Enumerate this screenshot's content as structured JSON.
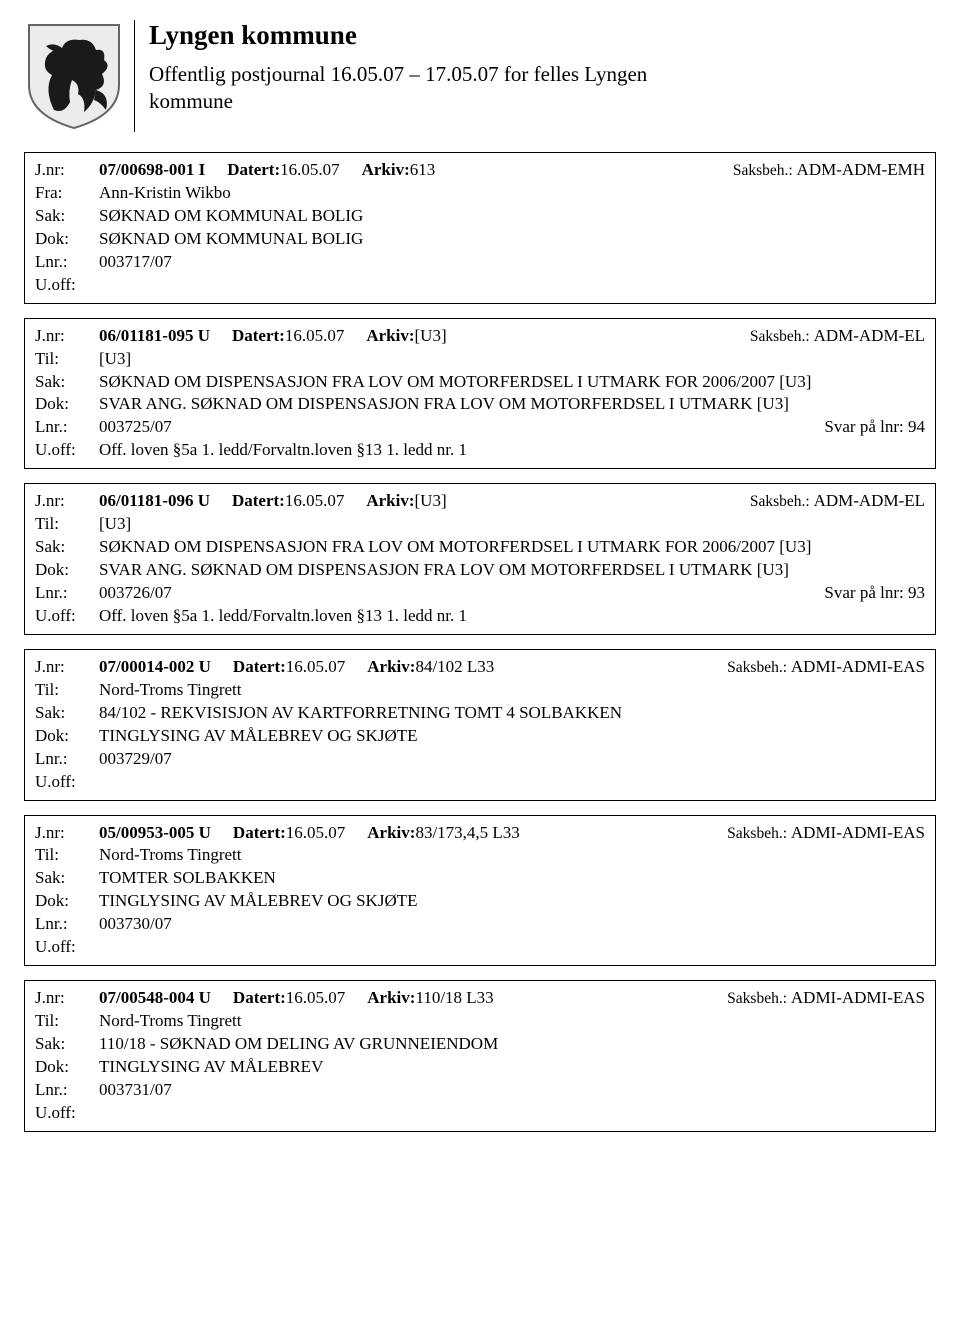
{
  "header": {
    "title": "Lyngen kommune",
    "subtitle": "Offentlig postjournal 16.05.07 – 17.05.07 for felles Lyngen kommune"
  },
  "labels": {
    "jnr": "J.nr:",
    "fra": "Fra:",
    "til": "Til:",
    "sak": "Sak:",
    "dok": "Dok:",
    "lnr": "Lnr.:",
    "uoff": "U.off:",
    "datert": "Datert:",
    "arkiv": "Arkiv:",
    "saksbeh": "Saksbeh.:"
  },
  "entries": [
    {
      "jnr": "07/00698-001 I",
      "datert": "16.05.07",
      "arkiv": "613",
      "saksbeh": "ADM-ADM-EMH",
      "party_label": "Fra:",
      "party": "Ann-Kristin Wikbo",
      "sak": "SØKNAD OM KOMMUNAL BOLIG",
      "dok": "SØKNAD OM KOMMUNAL BOLIG",
      "lnr": "003717/07",
      "lnr_note": "",
      "uoff": ""
    },
    {
      "jnr": "06/01181-095 U",
      "datert": "16.05.07",
      "arkiv": "[U3]",
      "saksbeh": "ADM-ADM-EL",
      "party_label": "Til:",
      "party": "[U3]",
      "sak": "SØKNAD OM DISPENSASJON FRA LOV OM MOTORFERDSEL I UTMARK FOR 2006/2007 [U3]",
      "dok": "SVAR ANG. SØKNAD OM DISPENSASJON FRA LOV OM MOTORFERDSEL I UTMARK [U3]",
      "lnr": "003725/07",
      "lnr_note": "Svar på lnr: 94",
      "uoff": "Off. loven §5a 1. ledd/Forvaltn.loven §13 1. ledd nr. 1"
    },
    {
      "jnr": "06/01181-096 U",
      "datert": "16.05.07",
      "arkiv": "[U3]",
      "saksbeh": "ADM-ADM-EL",
      "party_label": "Til:",
      "party": "[U3]",
      "sak": "SØKNAD OM DISPENSASJON FRA LOV OM MOTORFERDSEL I UTMARK FOR 2006/2007 [U3]",
      "dok": "SVAR ANG. SØKNAD OM DISPENSASJON FRA LOV OM MOTORFERDSEL I UTMARK [U3]",
      "lnr": "003726/07",
      "lnr_note": "Svar på lnr: 93",
      "uoff": "Off. loven §5a 1. ledd/Forvaltn.loven §13 1. ledd nr. 1"
    },
    {
      "jnr": "07/00014-002 U",
      "datert": "16.05.07",
      "arkiv": "84/102 L33",
      "saksbeh": "ADMI-ADMI-EAS",
      "party_label": "Til:",
      "party": "Nord-Troms Tingrett",
      "sak": "84/102 - REKVISISJON AV KARTFORRETNING TOMT 4 SOLBAKKEN",
      "dok": "TINGLYSING AV MÅLEBREV OG SKJØTE",
      "lnr": "003729/07",
      "lnr_note": "",
      "uoff": ""
    },
    {
      "jnr": "05/00953-005 U",
      "datert": "16.05.07",
      "arkiv": "83/173,4,5 L33",
      "saksbeh": "ADMI-ADMI-EAS",
      "party_label": "Til:",
      "party": "Nord-Troms Tingrett",
      "sak": "TOMTER SOLBAKKEN",
      "dok": "TINGLYSING AV MÅLEBREV OG SKJØTE",
      "lnr": "003730/07",
      "lnr_note": "",
      "uoff": ""
    },
    {
      "jnr": "07/00548-004 U",
      "datert": "16.05.07",
      "arkiv": "110/18 L33",
      "saksbeh": "ADMI-ADMI-EAS",
      "party_label": "Til:",
      "party": "Nord-Troms Tingrett",
      "sak": "110/18 - SØKNAD OM DELING AV GRUNNEIENDOM",
      "dok": "TINGLYSING AV MÅLEBREV",
      "lnr": "003731/07",
      "lnr_note": "",
      "uoff": ""
    }
  ],
  "colors": {
    "text": "#000000",
    "background": "#ffffff",
    "border": "#000000",
    "shield_fill": "#ececec",
    "shield_stroke": "#666666",
    "horse_fill": "#1a1a1a"
  }
}
